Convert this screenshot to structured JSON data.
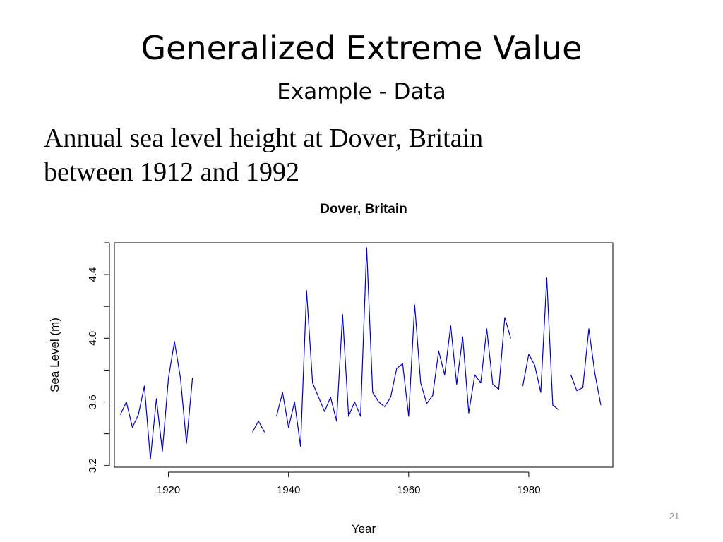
{
  "slide": {
    "title": "Generalized Extreme Value",
    "subtitle": "Example - Data",
    "body_lines": [
      "Annual sea level height at Dover, Britain",
      "between 1912 and 1992"
    ],
    "page_number": "21"
  },
  "chart_data": {
    "type": "line",
    "title": "Dover, Britain",
    "xlabel": "Year",
    "ylabel": "Sea Level (m)",
    "xlim": [
      1911,
      1994
    ],
    "ylim": [
      3.19,
      4.6
    ],
    "xticks": [
      1920,
      1940,
      1960,
      1980
    ],
    "yticks": [
      3.2,
      3.6,
      4.0,
      4.4
    ],
    "ytick_labels": [
      "3.2",
      "3.6",
      "4.0",
      "4.4"
    ],
    "grid": false,
    "line_color": "#0000cc",
    "series": [
      {
        "x": [
          1912,
          1913,
          1914,
          1915,
          1916,
          1917,
          1918,
          1919,
          1920,
          1921,
          1922,
          1923,
          1924,
          1925,
          1926,
          1927,
          1928,
          1929,
          1930,
          1931,
          1932,
          1933,
          1934,
          1935,
          1936,
          1937,
          1938,
          1939,
          1940,
          1941,
          1942,
          1943,
          1944,
          1945,
          1946,
          1947,
          1948,
          1949,
          1950,
          1951,
          1952,
          1953,
          1954,
          1955,
          1956,
          1957,
          1958,
          1959,
          1960,
          1961,
          1962,
          1963,
          1964,
          1965,
          1966,
          1967,
          1968,
          1969,
          1970,
          1971,
          1972,
          1973,
          1974,
          1975,
          1976,
          1977,
          1978,
          1979,
          1980,
          1981,
          1982,
          1983,
          1984,
          1985,
          1986,
          1987,
          1988,
          1989,
          1990,
          1991,
          1992
        ],
        "values": [
          3.52,
          3.6,
          3.44,
          3.52,
          3.7,
          3.24,
          3.62,
          3.29,
          3.75,
          3.98,
          3.75,
          3.34,
          3.75,
          null,
          null,
          null,
          null,
          null,
          null,
          null,
          null,
          null,
          3.41,
          3.48,
          3.41,
          null,
          3.51,
          3.66,
          3.44,
          3.6,
          3.32,
          4.3,
          3.72,
          3.63,
          3.54,
          3.63,
          3.48,
          4.15,
          3.51,
          3.6,
          3.51,
          4.57,
          3.66,
          3.6,
          3.57,
          3.63,
          3.81,
          3.84,
          3.51,
          4.21,
          3.72,
          3.59,
          3.64,
          3.92,
          3.77,
          4.08,
          3.71,
          4.01,
          3.53,
          3.77,
          3.72,
          4.06,
          3.71,
          3.68,
          4.13,
          4.0,
          null,
          3.7,
          3.9,
          3.83,
          3.66,
          4.38,
          3.58,
          3.55,
          null,
          3.77,
          3.67,
          3.69,
          4.06,
          3.78,
          3.58
        ]
      }
    ]
  }
}
